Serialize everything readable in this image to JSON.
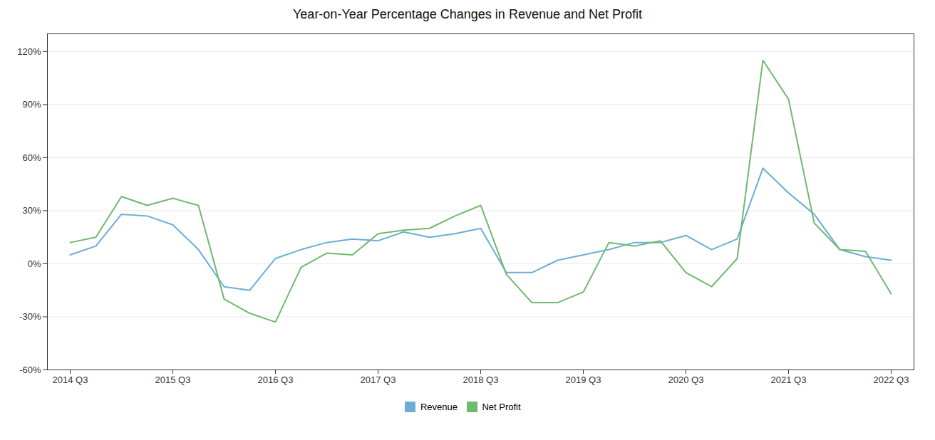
{
  "chart_data": {
    "type": "line",
    "title": "Year-on-Year Percentage Changes in Revenue and Net Profit",
    "categories": [
      "2014 Q3",
      null,
      null,
      null,
      "2015 Q3",
      null,
      null,
      null,
      "2016 Q3",
      null,
      null,
      null,
      "2017 Q3",
      null,
      null,
      null,
      "2018 Q3",
      null,
      null,
      null,
      "2019 Q3",
      null,
      null,
      null,
      "2020 Q3",
      null,
      null,
      null,
      "2021 Q3",
      null,
      null,
      null,
      "2022 Q3"
    ],
    "series": [
      {
        "name": "Revenue",
        "color": "#6aaed6",
        "values": [
          5,
          10,
          28,
          27,
          22,
          8,
          -13,
          -15,
          3,
          8,
          12,
          14,
          13,
          18,
          15,
          17,
          20,
          -5,
          -5,
          2,
          5,
          8,
          12,
          12,
          16,
          8,
          14,
          54,
          40,
          28,
          8,
          4,
          2
        ]
      },
      {
        "name": "Net Profit",
        "color": "#70b96e",
        "values": [
          12,
          15,
          38,
          33,
          37,
          33,
          -20,
          -28,
          -33,
          -2,
          6,
          5,
          17,
          19,
          20,
          27,
          33,
          -6,
          -22,
          -22,
          -16,
          12,
          10,
          13,
          -5,
          -13,
          3,
          115,
          93,
          23,
          8,
          7,
          -17
        ]
      }
    ],
    "ylim": [
      -60,
      130
    ],
    "yticks": [
      {
        "value": -60,
        "label": "-60%"
      },
      {
        "value": -30,
        "label": "-30%"
      },
      {
        "value": 0,
        "label": "0%"
      },
      {
        "value": 30,
        "label": "30%"
      },
      {
        "value": 60,
        "label": "60%"
      },
      {
        "value": 90,
        "label": "90%"
      },
      {
        "value": 120,
        "label": "120%"
      }
    ],
    "grid": true,
    "legend": "bottom"
  }
}
